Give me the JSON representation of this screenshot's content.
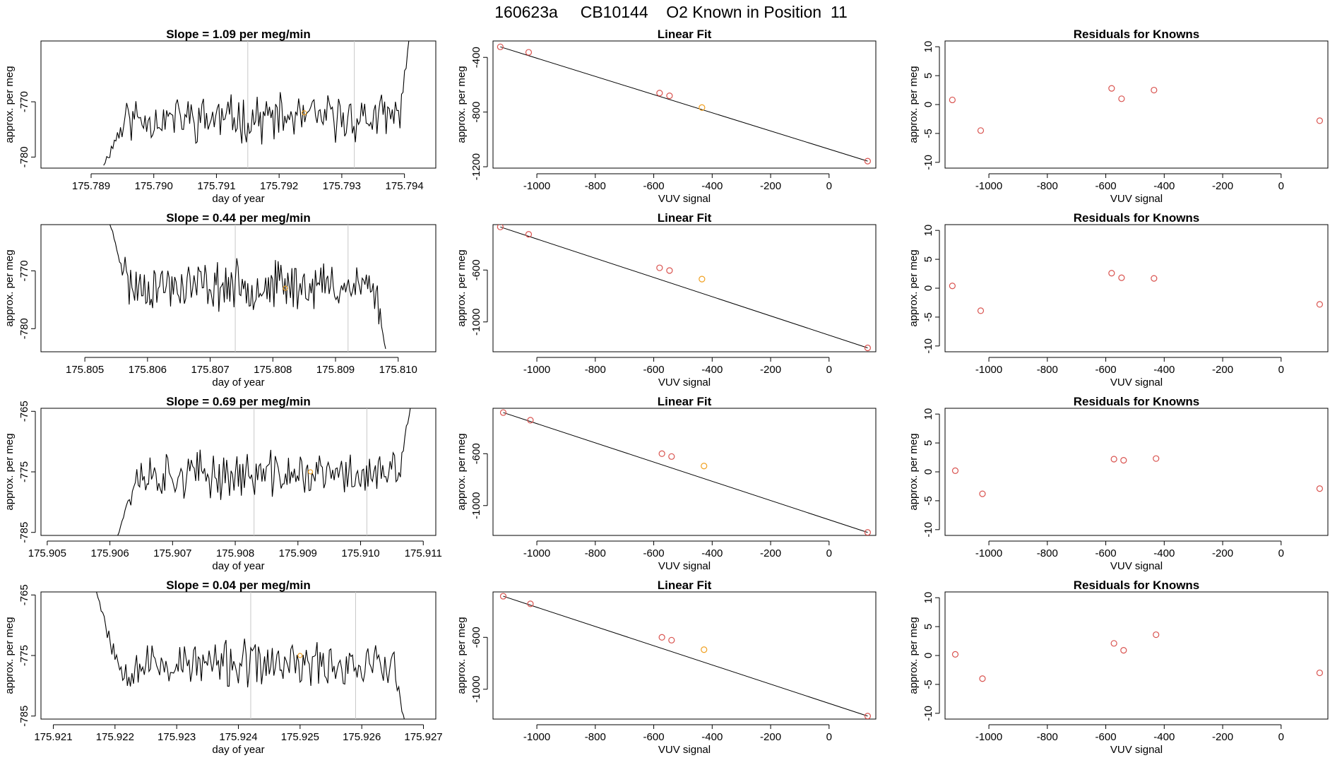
{
  "page": {
    "title": "160623a     CB10144    O2 Known in Position  11"
  },
  "colors": {
    "trace": "#000000",
    "points": "#d9534f",
    "highlight": "#f0a020",
    "vline": "#c8c8c8",
    "axis": "#000000"
  },
  "chart_data": [
    {
      "type": "line",
      "row": 0,
      "col": 0,
      "title": "Slope =  1.09  per meg/min",
      "xlabel": "day of year",
      "ylabel": "approx. per meg",
      "xlim": [
        175.7882,
        175.7945
      ],
      "ylim": [
        -782,
        -759
      ],
      "xticks": [
        175.789,
        175.79,
        175.791,
        175.792,
        175.793,
        175.794
      ],
      "xtick_labels": [
        "175.789",
        "175.790",
        "175.791",
        "175.792",
        "175.793",
        "175.794"
      ],
      "yticks": [
        -770,
        -780
      ],
      "ytick_labels": [
        "-770",
        "-780"
      ],
      "vlines": [
        175.7915,
        175.7932
      ],
      "highlight_point": {
        "x": 175.7924,
        "y": -772
      },
      "trace": {
        "x_start": 175.7892,
        "x_end": 175.7941,
        "level": -773,
        "amp": 3.3,
        "seed": 11,
        "start_y": -781.5,
        "end_y": -757
      }
    },
    {
      "type": "scatter",
      "row": 0,
      "col": 1,
      "title": "Linear Fit",
      "xlabel": "VUV signal",
      "ylabel": "approx. per meg",
      "xlim": [
        -1150,
        160
      ],
      "ylim": [
        -1210,
        -280
      ],
      "xticks": [
        -1000,
        -800,
        -600,
        -400,
        -200,
        0
      ],
      "xtick_labels": [
        "-1000",
        "-800",
        "-600",
        "-400",
        "-200",
        "0"
      ],
      "yticks": [
        -400,
        -800,
        -1200
      ],
      "ytick_labels": [
        "-400",
        "-800",
        "-1200"
      ],
      "points_x": [
        -1125,
        -1028,
        -580,
        -546,
        -435,
        132
      ],
      "points_y": [
        -323,
        -363,
        -661,
        -681,
        -767,
        -1159
      ],
      "highlight_index": 4,
      "fit_line": {
        "x": [
          -1125,
          132
        ],
        "y": [
          -323,
          -1159
        ]
      }
    },
    {
      "type": "scatter",
      "row": 0,
      "col": 2,
      "title": "Residuals for Knowns",
      "xlabel": "VUV signal",
      "ylabel": "approx. per meg",
      "xlim": [
        -1150,
        160
      ],
      "ylim": [
        -11,
        11
      ],
      "xticks": [
        -1000,
        -800,
        -600,
        -400,
        -200,
        0
      ],
      "xtick_labels": [
        "-1000",
        "-800",
        "-600",
        "-400",
        "-200",
        "0"
      ],
      "yticks": [
        10,
        5,
        0,
        -5,
        -10
      ],
      "ytick_labels": [
        "10",
        "5",
        "0",
        "-5",
        "-10"
      ],
      "points_x": [
        -1125,
        -1028,
        -580,
        -546,
        -435,
        132
      ],
      "points_y": [
        0.8,
        -4.5,
        2.8,
        1.0,
        2.5,
        -2.8
      ]
    },
    {
      "type": "line",
      "row": 1,
      "col": 0,
      "title": "Slope =  0.44  per meg/min",
      "xlabel": "day of year",
      "ylabel": "approx. per meg",
      "xlim": [
        175.8043,
        175.8106
      ],
      "ylim": [
        -784,
        -762
      ],
      "xticks": [
        175.805,
        175.806,
        175.807,
        175.808,
        175.809,
        175.81
      ],
      "xtick_labels": [
        "175.805",
        "175.806",
        "175.807",
        "175.808",
        "175.809",
        "175.810"
      ],
      "yticks": [
        -770,
        -780
      ],
      "ytick_labels": [
        "-770",
        "-780"
      ],
      "vlines": [
        175.8074,
        175.8092
      ],
      "highlight_point": {
        "x": 175.8082,
        "y": -773
      },
      "trace": {
        "x_start": 175.8054,
        "x_end": 175.8098,
        "level": -772.5,
        "amp": 3.3,
        "seed": 23,
        "start_y": -762,
        "end_y": -783.5
      }
    },
    {
      "type": "scatter",
      "row": 1,
      "col": 1,
      "title": "Linear Fit",
      "xlabel": "VUV signal",
      "ylabel": "approx. per meg",
      "xlim": [
        -1150,
        160
      ],
      "ylim": [
        -1230,
        -250
      ],
      "xticks": [
        -1000,
        -800,
        -600,
        -400,
        -200,
        0
      ],
      "xtick_labels": [
        "-1000",
        "-800",
        "-600",
        "-400",
        "-200",
        "0"
      ],
      "yticks": [
        -600,
        -1000
      ],
      "ytick_labels": [
        "-600",
        "-1000"
      ],
      "points_x": [
        -1125,
        -1028,
        -580,
        -546,
        -435,
        132
      ],
      "points_y": [
        -268,
        -325,
        -583,
        -604,
        -670,
        -1200
      ],
      "highlight_index": 4,
      "fit_line": {
        "x": [
          -1125,
          132
        ],
        "y": [
          -268,
          -1200
        ]
      }
    },
    {
      "type": "scatter",
      "row": 1,
      "col": 2,
      "title": "Residuals for Knowns",
      "xlabel": "VUV signal",
      "ylabel": "approx. per meg",
      "xlim": [
        -1150,
        160
      ],
      "ylim": [
        -11,
        11
      ],
      "xticks": [
        -1000,
        -800,
        -600,
        -400,
        -200,
        0
      ],
      "xtick_labels": [
        "-1000",
        "-800",
        "-600",
        "-400",
        "-200",
        "0"
      ],
      "yticks": [
        10,
        5,
        0,
        -5,
        -10
      ],
      "ytick_labels": [
        "10",
        "5",
        "0",
        "-5",
        "-10"
      ],
      "points_x": [
        -1125,
        -1028,
        -580,
        -546,
        -435,
        132
      ],
      "points_y": [
        0.4,
        -3.9,
        2.6,
        1.8,
        1.7,
        -2.8
      ]
    },
    {
      "type": "line",
      "row": 2,
      "col": 0,
      "title": "Slope =  0.69  per meg/min",
      "xlabel": "day of year",
      "ylabel": "approx. per meg",
      "xlim": [
        175.9049,
        175.9112
      ],
      "ylim": [
        -785.5,
        -764.5
      ],
      "xticks": [
        175.905,
        175.906,
        175.907,
        175.908,
        175.909,
        175.91,
        175.911
      ],
      "xtick_labels": [
        "175.905",
        "175.906",
        "175.907",
        "175.908",
        "175.909",
        "175.910",
        "175.911"
      ],
      "yticks": [
        -765,
        -775,
        -785
      ],
      "ytick_labels": [
        "-765",
        "-775",
        "-785"
      ],
      "vlines": [
        175.9083,
        175.9101
      ],
      "highlight_point": {
        "x": 175.9092,
        "y": -775
      },
      "trace": {
        "x_start": 175.9061,
        "x_end": 175.9108,
        "level": -775.5,
        "amp": 3.0,
        "seed": 37,
        "start_y": -786,
        "end_y": -764
      }
    },
    {
      "type": "scatter",
      "row": 2,
      "col": 1,
      "title": "Linear Fit",
      "xlabel": "VUV signal",
      "ylabel": "approx. per meg",
      "xlim": [
        -1150,
        160
      ],
      "ylim": [
        -1230,
        -250
      ],
      "xticks": [
        -1000,
        -800,
        -600,
        -400,
        -200,
        0
      ],
      "xtick_labels": [
        "-1000",
        "-800",
        "-600",
        "-400",
        "-200",
        "0"
      ],
      "yticks": [
        -600,
        -1000
      ],
      "ytick_labels": [
        "-600",
        "-1000"
      ],
      "points_x": [
        -1115,
        -1022,
        -572,
        -539,
        -428,
        132
      ],
      "points_y": [
        -283,
        -342,
        -600,
        -622,
        -695,
        -1207
      ],
      "highlight_index": 4,
      "fit_line": {
        "x": [
          -1115,
          132
        ],
        "y": [
          -283,
          -1207
        ]
      }
    },
    {
      "type": "scatter",
      "row": 2,
      "col": 2,
      "title": "Residuals for Knowns",
      "xlabel": "VUV signal",
      "ylabel": "approx. per meg",
      "xlim": [
        -1150,
        160
      ],
      "ylim": [
        -11,
        11
      ],
      "xticks": [
        -1000,
        -800,
        -600,
        -400,
        -200,
        0
      ],
      "xtick_labels": [
        "-1000",
        "-800",
        "-600",
        "-400",
        "-200",
        "0"
      ],
      "yticks": [
        10,
        5,
        0,
        -5,
        -10
      ],
      "ytick_labels": [
        "10",
        "5",
        "0",
        "-5",
        "-10"
      ],
      "points_x": [
        -1115,
        -1022,
        -572,
        -539,
        -428,
        132
      ],
      "points_y": [
        0.2,
        -3.8,
        2.2,
        2.0,
        2.3,
        -2.9
      ]
    },
    {
      "type": "line",
      "row": 3,
      "col": 0,
      "title": "Slope =  0.04  per meg/min",
      "xlabel": "day of year",
      "ylabel": "approx. per meg",
      "xlim": [
        175.9208,
        175.9272
      ],
      "ylim": [
        -785.5,
        -764.5
      ],
      "xticks": [
        175.921,
        175.922,
        175.923,
        175.924,
        175.925,
        175.926,
        175.927
      ],
      "xtick_labels": [
        "175.921",
        "175.922",
        "175.923",
        "175.924",
        "175.925",
        "175.926",
        "175.927"
      ],
      "yticks": [
        -765,
        -775,
        -785
      ],
      "ytick_labels": [
        "-765",
        "-775",
        "-785"
      ],
      "vlines": [
        175.9242,
        175.9259
      ],
      "highlight_point": {
        "x": 175.925,
        "y": -775
      },
      "trace": {
        "x_start": 175.9217,
        "x_end": 175.9267,
        "level": -776.5,
        "amp": 3.0,
        "seed": 53,
        "start_y": -764.5,
        "end_y": -786
      }
    },
    {
      "type": "scatter",
      "row": 3,
      "col": 1,
      "title": "Linear Fit",
      "xlabel": "VUV signal",
      "ylabel": "approx. per meg",
      "xlim": [
        -1150,
        160
      ],
      "ylim": [
        -1230,
        -250
      ],
      "xticks": [
        -1000,
        -800,
        -600,
        -400,
        -200,
        0
      ],
      "xtick_labels": [
        "-1000",
        "-800",
        "-600",
        "-400",
        "-200",
        "0"
      ],
      "yticks": [
        -600,
        -1000
      ],
      "ytick_labels": [
        "-600",
        "-1000"
      ],
      "points_x": [
        -1115,
        -1022,
        -572,
        -539,
        -428,
        132
      ],
      "points_y": [
        -283,
        -342,
        -600,
        -622,
        -695,
        -1207
      ],
      "highlight_index": 4,
      "fit_line": {
        "x": [
          -1115,
          132
        ],
        "y": [
          -283,
          -1207
        ]
      }
    },
    {
      "type": "scatter",
      "row": 3,
      "col": 2,
      "title": "Residuals for Knowns",
      "xlabel": "VUV signal",
      "ylabel": "approx. per meg",
      "xlim": [
        -1150,
        160
      ],
      "ylim": [
        -11,
        11
      ],
      "xticks": [
        -1000,
        -800,
        -600,
        -400,
        -200,
        0
      ],
      "xtick_labels": [
        "-1000",
        "-800",
        "-600",
        "-400",
        "-200",
        "0"
      ],
      "yticks": [
        10,
        5,
        0,
        -5,
        -10
      ],
      "ytick_labels": [
        "10",
        "5",
        "0",
        "-5",
        "-10"
      ],
      "points_x": [
        -1115,
        -1022,
        -572,
        -539,
        -428,
        132
      ],
      "points_y": [
        0.2,
        -4.0,
        2.1,
        0.9,
        3.6,
        -3.0
      ]
    }
  ]
}
